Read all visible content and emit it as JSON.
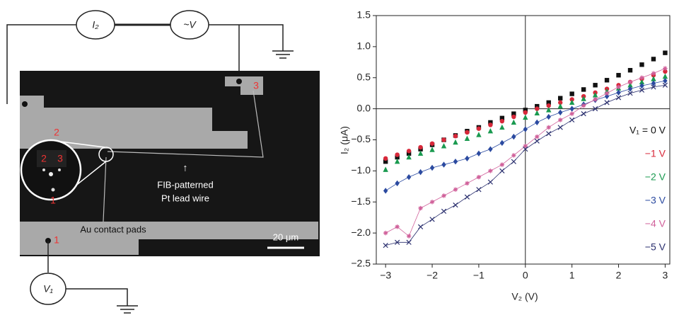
{
  "diagram": {
    "i2_label": "I₂",
    "source_label": "~V",
    "v1_label": "V₁",
    "pad_labels": [
      "1",
      "2",
      "3"
    ],
    "inset_labels": [
      "2",
      "3",
      "1"
    ],
    "annotation": [
      "FIB-patterned",
      "Pt lead wire"
    ],
    "pads_label": "Au contact pads",
    "scale_bar": "20 μm"
  },
  "chart_data": {
    "type": "line",
    "xlabel": "V₂ (V)",
    "ylabel": "I₂ (μA)",
    "x": [
      -3,
      -2.75,
      -2.5,
      -2.25,
      -2,
      -1.75,
      -1.5,
      -1.25,
      -1,
      -0.75,
      -0.5,
      -0.25,
      0,
      0.25,
      0.5,
      0.75,
      1,
      1.25,
      1.5,
      1.75,
      2,
      2.25,
      2.5,
      2.75,
      3
    ],
    "series": [
      {
        "name": "V₁ = 0 V",
        "color": "#111111",
        "marker": "square",
        "line": false,
        "values": [
          -0.85,
          -0.78,
          -0.72,
          -0.65,
          -0.58,
          -0.5,
          -0.43,
          -0.36,
          -0.3,
          -0.22,
          -0.15,
          -0.08,
          -0.02,
          0.04,
          0.1,
          0.17,
          0.24,
          0.31,
          0.38,
          0.46,
          0.54,
          0.62,
          0.71,
          0.8,
          0.9
        ]
      },
      {
        "name": "−1 V",
        "color": "#d8283a",
        "marker": "circle",
        "line": false,
        "values": [
          -0.8,
          -0.74,
          -0.68,
          -0.62,
          -0.56,
          -0.5,
          -0.44,
          -0.38,
          -0.32,
          -0.26,
          -0.2,
          -0.13,
          -0.06,
          0.0,
          0.05,
          0.1,
          0.15,
          0.2,
          0.26,
          0.32,
          0.38,
          0.43,
          0.48,
          0.54,
          0.6
        ]
      },
      {
        "name": "−2 V",
        "color": "#1a9a50",
        "marker": "triangle",
        "line": false,
        "values": [
          -0.98,
          -0.85,
          -0.78,
          -0.72,
          -0.66,
          -0.6,
          -0.54,
          -0.48,
          -0.42,
          -0.36,
          -0.3,
          -0.22,
          -0.14,
          -0.07,
          -0.02,
          0.04,
          0.1,
          0.16,
          0.22,
          0.28,
          0.33,
          0.38,
          0.43,
          0.48,
          0.52
        ]
      },
      {
        "name": "−3 V",
        "color": "#2b4aa0",
        "marker": "diamond",
        "line": true,
        "values": [
          -1.32,
          -1.2,
          -1.1,
          -1.02,
          -0.95,
          -0.9,
          -0.85,
          -0.8,
          -0.72,
          -0.65,
          -0.55,
          -0.45,
          -0.33,
          -0.22,
          -0.13,
          -0.06,
          0.0,
          0.07,
          0.14,
          0.2,
          0.26,
          0.32,
          0.37,
          0.41,
          0.45
        ]
      },
      {
        "name": "−4 V",
        "color": "#d0609a",
        "marker": "star",
        "line": true,
        "values": [
          -2.0,
          -1.9,
          -2.05,
          -1.6,
          -1.5,
          -1.4,
          -1.3,
          -1.2,
          -1.1,
          -1.0,
          -0.9,
          -0.75,
          -0.6,
          -0.45,
          -0.3,
          -0.18,
          -0.08,
          0.05,
          0.15,
          0.25,
          0.35,
          0.43,
          0.5,
          0.57,
          0.65
        ]
      },
      {
        "name": "−5 V",
        "color": "#2a2f6e",
        "marker": "cross",
        "line": true,
        "values": [
          -2.2,
          -2.15,
          -2.15,
          -1.9,
          -1.78,
          -1.65,
          -1.55,
          -1.42,
          -1.3,
          -1.18,
          -1.0,
          -0.85,
          -0.65,
          -0.52,
          -0.4,
          -0.3,
          -0.18,
          -0.08,
          0.0,
          0.1,
          0.18,
          0.25,
          0.3,
          0.35,
          0.38
        ]
      }
    ],
    "xlim": [
      -3.2,
      3.1
    ],
    "ylim": [
      -2.5,
      1.5
    ],
    "xticks": [
      {
        "value": -3,
        "label": "−3"
      },
      {
        "value": -2,
        "label": "−2"
      },
      {
        "value": -1,
        "label": "−1"
      },
      0,
      1,
      2,
      3
    ],
    "yticks": [
      {
        "value": 1.5,
        "label": "1.5"
      },
      {
        "value": 1,
        "label": "1.0"
      },
      {
        "value": 0.5,
        "label": "0.5"
      },
      {
        "value": 0,
        "label": "0.0"
      },
      {
        "value": -0.5,
        "label": "−0.5"
      },
      {
        "value": -1,
        "label": "−1.0"
      },
      {
        "value": -1.5,
        "label": "−1.5"
      },
      {
        "value": -2,
        "label": "−2.0"
      },
      {
        "value": -2.5,
        "label": "−2.5"
      }
    ],
    "zero_lines": true,
    "legend": "right"
  }
}
